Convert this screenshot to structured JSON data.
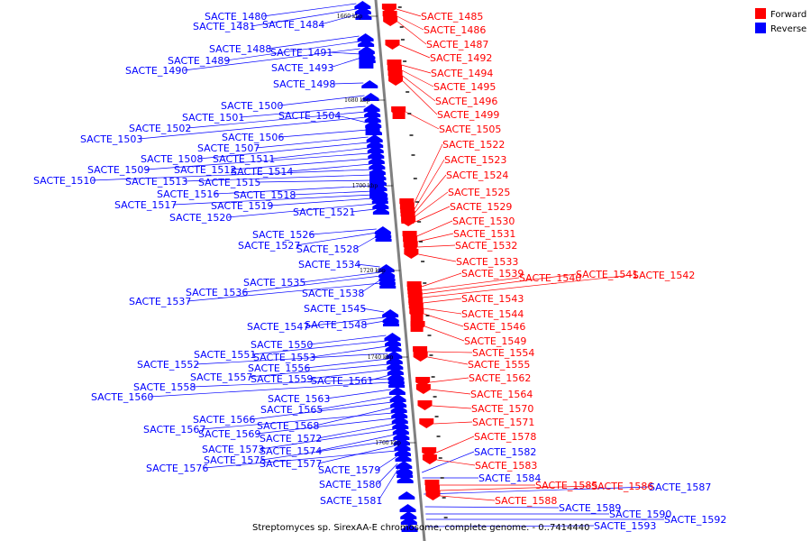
{
  "caption": "Streptomyces sp. SirexAA-E chromosome, complete genome. - 0..7414440",
  "legend": [
    {
      "label": "Forward",
      "color": "#ff0000"
    },
    {
      "label": "Reverse",
      "color": "#0000ff"
    }
  ],
  "colors": {
    "forward": "#ff0000",
    "reverse": "#0000ff",
    "axis": "#808080"
  },
  "kbp_marks": [
    "1660 kbp",
    "1680 kbp",
    "1700 kbp",
    "1720 kbp",
    "1740 kbp",
    "1760 kbp"
  ],
  "reverse_genes": [
    "SACTE_1480",
    "SACTE_1481",
    "SACTE_1484",
    "SACTE_1488",
    "SACTE_1489",
    "SACTE_1490",
    "SACTE_1491",
    "SACTE_1493",
    "SACTE_1498",
    "SACTE_1500",
    "SACTE_1501",
    "SACTE_1502",
    "SACTE_1503",
    "SACTE_1504",
    "SACTE_1506",
    "SACTE_1507",
    "SACTE_1508",
    "SACTE_1511",
    "SACTE_1509",
    "SACTE_1512",
    "SACTE_1514",
    "SACTE_1510",
    "SACTE_1513",
    "SACTE_1515",
    "SACTE_1516",
    "SACTE_1518",
    "SACTE_1517",
    "SACTE_1519",
    "SACTE_1520",
    "SACTE_1521",
    "SACTE_1526",
    "SACTE_1527",
    "SACTE_1528",
    "SACTE_1534",
    "SACTE_1535",
    "SACTE_1536",
    "SACTE_1538",
    "SACTE_1537",
    "SACTE_1545",
    "SACTE_1547",
    "SACTE_1548",
    "SACTE_1550",
    "SACTE_1551",
    "SACTE_1553",
    "SACTE_1552",
    "SACTE_1556",
    "SACTE_1557",
    "SACTE_1559",
    "SACTE_1561",
    "SACTE_1558",
    "SACTE_1560",
    "SACTE_1563",
    "SACTE_1565",
    "SACTE_1566",
    "SACTE_1568",
    "SACTE_1567",
    "SACTE_1569",
    "SACTE_1572",
    "SACTE_1573",
    "SACTE_1574",
    "SACTE_1575",
    "SACTE_1577",
    "SACTE_1576",
    "SACTE_1579",
    "SACTE_1580",
    "SACTE_1581",
    "SACTE_1582",
    "SACTE_1584",
    "SACTE_1587",
    "SACTE_1589",
    "SACTE_1590",
    "SACTE_1592",
    "SACTE_1593"
  ],
  "forward_genes": [
    "SACTE_1485",
    "SACTE_1486",
    "SACTE_1487",
    "SACTE_1492",
    "SACTE_1494",
    "SACTE_1495",
    "SACTE_1496",
    "SACTE_1499",
    "SACTE_1505",
    "SACTE_1522",
    "SACTE_1523",
    "SACTE_1524",
    "SACTE_1525",
    "SACTE_1529",
    "SACTE_1530",
    "SACTE_1531",
    "SACTE_1532",
    "SACTE_1533",
    "SACTE_1539",
    "SACTE_1540",
    "SACTE_1541",
    "SACTE_1542",
    "SACTE_1543",
    "SACTE_1544",
    "SACTE_1546",
    "SACTE_1549",
    "SACTE_1554",
    "SACTE_1555",
    "SACTE_1562",
    "SACTE_1564",
    "SACTE_1570",
    "SACTE_1571",
    "SACTE_1578",
    "SACTE_1583",
    "SACTE_1585",
    "SACTE_1586",
    "SACTE_1588"
  ]
}
